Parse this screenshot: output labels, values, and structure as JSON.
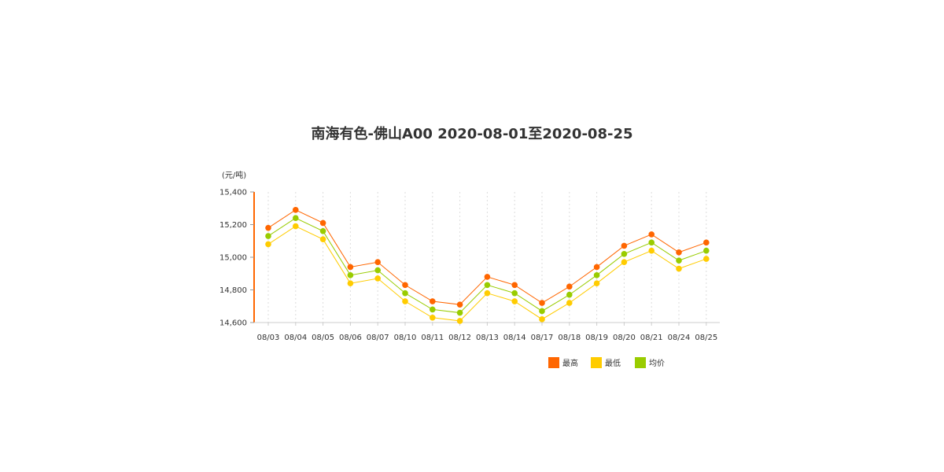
{
  "chart_data": {
    "type": "line",
    "title": "南海有色-佛山A00 2020-08-01至2020-08-25",
    "ylabel": "(元/吨)",
    "xlabel": "",
    "categories": [
      "08/03",
      "08/04",
      "08/05",
      "08/06",
      "08/07",
      "08/10",
      "08/11",
      "08/12",
      "08/13",
      "08/14",
      "08/17",
      "08/18",
      "08/19",
      "08/20",
      "08/21",
      "08/24",
      "08/25"
    ],
    "ylim": [
      14600,
      15400
    ],
    "yticks": [
      14600,
      14800,
      15000,
      15200,
      15400
    ],
    "ytick_labels": [
      "14,600",
      "14,800",
      "15,000",
      "15,200",
      "15,400"
    ],
    "grid": "vertical dashed",
    "legend_position": "bottom-right",
    "series": [
      {
        "name": "最高",
        "color": "#FF6600",
        "values": [
          15180,
          15290,
          15210,
          14940,
          14970,
          14830,
          14730,
          14710,
          14880,
          14830,
          14720,
          14820,
          14940,
          15070,
          15140,
          15030,
          15090
        ]
      },
      {
        "name": "最低",
        "color": "#FFCC00",
        "values": [
          15080,
          15190,
          15110,
          14840,
          14870,
          14730,
          14630,
          14610,
          14780,
          14730,
          14620,
          14720,
          14840,
          14970,
          15040,
          14930,
          14990
        ]
      },
      {
        "name": "均价",
        "color": "#99CC00",
        "values": [
          15130,
          15240,
          15160,
          14890,
          14920,
          14780,
          14680,
          14660,
          14830,
          14780,
          14670,
          14770,
          14890,
          15020,
          15090,
          14980,
          15040
        ]
      }
    ]
  }
}
